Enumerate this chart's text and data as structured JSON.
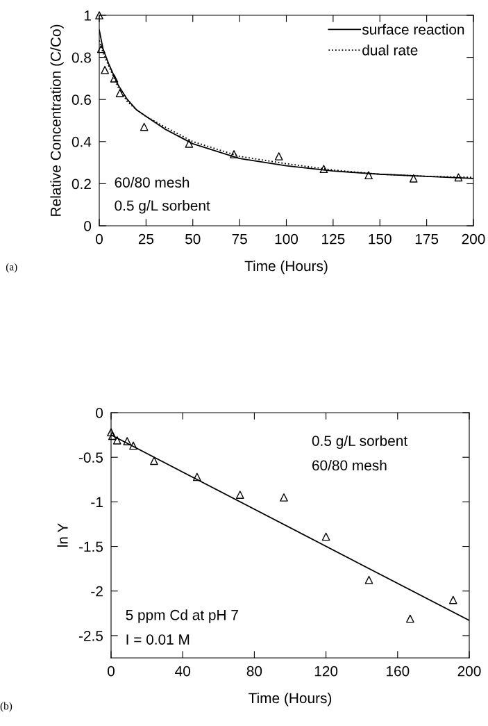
{
  "chart_data": [
    {
      "type": "scatter",
      "xlabel": "Time (Hours)",
      "ylabel": "Relative Concentration (C/Co)",
      "xlim": [
        0,
        200
      ],
      "ylim": [
        0,
        1
      ],
      "xticks": [
        0,
        25,
        50,
        75,
        100,
        125,
        150,
        175,
        200
      ],
      "yticks": [
        0,
        0.2,
        0.4,
        0.6,
        0.8,
        1
      ],
      "grid": false,
      "legend": "top right",
      "annotations": [
        "60/80 mesh",
        "0.5 g/L sorbent",
        "(a)"
      ],
      "series": [
        {
          "marker": "triangle",
          "color": "#000000",
          "x": [
            0,
            1,
            3,
            8,
            11,
            24,
            48,
            72,
            96,
            120,
            144,
            168,
            192
          ],
          "values": [
            1.0,
            0.84,
            0.74,
            0.7,
            0.63,
            0.47,
            0.39,
            0.34,
            0.33,
            0.27,
            0.24,
            0.225,
            0.23
          ]
        },
        {
          "type": "line",
          "name": "surface reaction",
          "color": "#000000",
          "line_style": "solid",
          "x": [
            0,
            2,
            5,
            10,
            15,
            20,
            25,
            35,
            50,
            75,
            100,
            125,
            150,
            175,
            200
          ],
          "values": [
            0.93,
            0.84,
            0.77,
            0.67,
            0.6,
            0.55,
            0.52,
            0.46,
            0.39,
            0.32,
            0.285,
            0.26,
            0.245,
            0.235,
            0.225
          ]
        },
        {
          "type": "line",
          "name": "dual rate",
          "color": "#000000",
          "line_style": "dotted",
          "x": [
            0,
            2,
            5,
            10,
            15,
            20,
            25,
            35,
            50,
            75,
            100,
            125,
            150,
            175,
            200
          ],
          "values": [
            0.88,
            0.82,
            0.76,
            0.66,
            0.59,
            0.55,
            0.52,
            0.47,
            0.4,
            0.33,
            0.295,
            0.265,
            0.245,
            0.235,
            0.23
          ]
        }
      ]
    },
    {
      "type": "scatter",
      "xlabel": "Time (Hours)",
      "ylabel": "ln Y",
      "xlim": [
        0,
        200
      ],
      "ylim": [
        -2.75,
        0
      ],
      "xticks": [
        0,
        40,
        80,
        120,
        160,
        200
      ],
      "yticks": [
        0,
        -0.5,
        -1,
        -1.5,
        -2,
        -2.5
      ],
      "grid": false,
      "annotations": [
        "0.5 g/L sorbent",
        "60/80 mesh",
        "5 ppm Cd at pH 7",
        "I = 0.01 M",
        "(b)"
      ],
      "series": [
        {
          "marker": "triangle",
          "color": "#000000",
          "x": [
            0,
            0.7,
            3.4,
            9,
            12.4,
            24,
            48,
            72,
            96.5,
            120,
            144,
            167,
            191
          ],
          "values": [
            -0.22,
            -0.26,
            -0.31,
            -0.32,
            -0.37,
            -0.54,
            -0.72,
            -0.92,
            -0.95,
            -1.39,
            -1.875,
            -2.31,
            -2.1
          ]
        },
        {
          "type": "line",
          "color": "#000000",
          "line_style": "solid",
          "x": [
            0,
            200
          ],
          "values": [
            -0.25,
            -2.33
          ]
        }
      ]
    }
  ]
}
